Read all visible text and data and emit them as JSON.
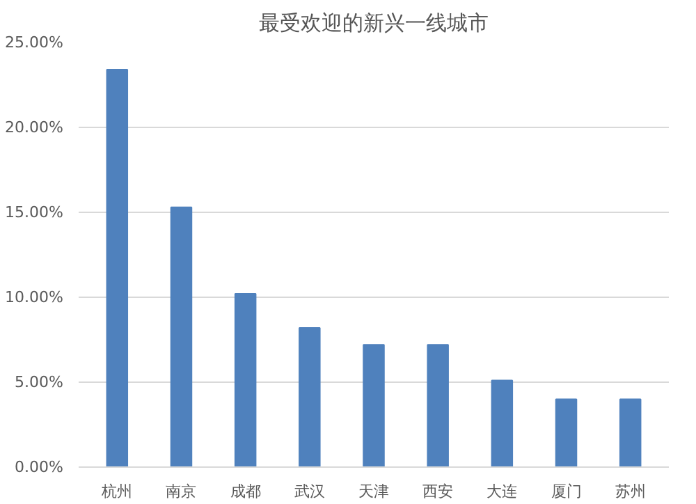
{
  "chart_data": {
    "type": "bar",
    "title": "最受欢迎的新兴一线城市",
    "categories": [
      "杭州",
      "南京",
      "成都",
      "武汉",
      "天津",
      "西安",
      "大连",
      "厦门",
      "苏州"
    ],
    "values": [
      23.4,
      15.3,
      10.2,
      8.2,
      7.2,
      7.2,
      5.1,
      4.0,
      4.0
    ],
    "color": "#4f81bd",
    "ylim": [
      0,
      25
    ],
    "yticks": [
      {
        "value": 0,
        "label": "0.00%"
      },
      {
        "value": 5,
        "label": "5.00%"
      },
      {
        "value": 10,
        "label": "10.00%"
      },
      {
        "value": 15,
        "label": "15.00%"
      },
      {
        "value": 20,
        "label": "20.00%"
      },
      {
        "value": 25,
        "label": "25.00%"
      }
    ],
    "grid": "y"
  }
}
